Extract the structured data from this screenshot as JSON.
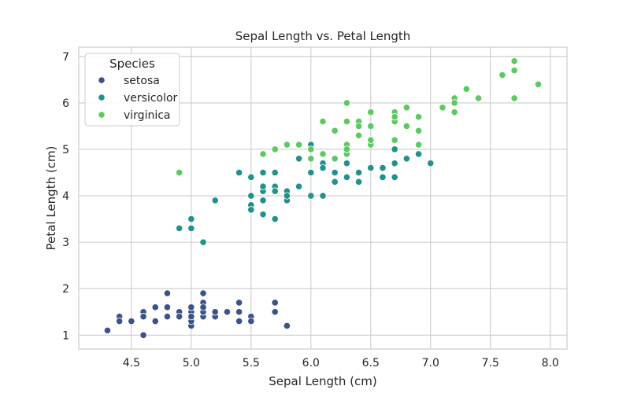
{
  "chart_data": {
    "type": "scatter",
    "title": "Sepal Length vs. Petal Length",
    "xlabel": "Sepal Length (cm)",
    "ylabel": "Petal Length (cm)",
    "xlim": [
      4.06,
      8.14
    ],
    "ylim": [
      0.7,
      7.2
    ],
    "x_ticks": [
      4.5,
      5.0,
      5.5,
      6.0,
      6.5,
      7.0,
      7.5,
      8.0
    ],
    "x_tick_labels": [
      "4.5",
      "5.0",
      "5.5",
      "6.0",
      "6.5",
      "7.0",
      "7.5",
      "8.0"
    ],
    "y_ticks": [
      1,
      2,
      3,
      4,
      5,
      6,
      7
    ],
    "y_tick_labels": [
      "1",
      "2",
      "3",
      "4",
      "5",
      "6",
      "7"
    ],
    "grid": true,
    "legend": {
      "title": "Species",
      "placement": "top-left"
    },
    "series": [
      {
        "name": "setosa",
        "color": "#3b528b",
        "points": [
          [
            5.1,
            1.4
          ],
          [
            4.9,
            1.4
          ],
          [
            4.7,
            1.3
          ],
          [
            4.6,
            1.5
          ],
          [
            5.0,
            1.4
          ],
          [
            5.4,
            1.7
          ],
          [
            4.6,
            1.4
          ],
          [
            5.0,
            1.5
          ],
          [
            4.4,
            1.4
          ],
          [
            4.9,
            1.5
          ],
          [
            5.4,
            1.5
          ],
          [
            4.8,
            1.6
          ],
          [
            4.8,
            1.4
          ],
          [
            4.3,
            1.1
          ],
          [
            5.8,
            1.2
          ],
          [
            5.7,
            1.5
          ],
          [
            5.4,
            1.3
          ],
          [
            5.1,
            1.4
          ],
          [
            5.7,
            1.7
          ],
          [
            5.1,
            1.5
          ],
          [
            5.4,
            1.7
          ],
          [
            5.1,
            1.5
          ],
          [
            4.6,
            1.0
          ],
          [
            5.1,
            1.7
          ],
          [
            4.8,
            1.9
          ],
          [
            5.0,
            1.6
          ],
          [
            5.0,
            1.6
          ],
          [
            5.2,
            1.5
          ],
          [
            5.2,
            1.4
          ],
          [
            4.7,
            1.6
          ],
          [
            4.8,
            1.6
          ],
          [
            5.4,
            1.5
          ],
          [
            5.2,
            1.5
          ],
          [
            5.5,
            1.4
          ],
          [
            4.9,
            1.5
          ],
          [
            5.0,
            1.2
          ],
          [
            5.5,
            1.3
          ],
          [
            4.9,
            1.4
          ],
          [
            4.4,
            1.3
          ],
          [
            5.1,
            1.5
          ],
          [
            5.0,
            1.3
          ],
          [
            4.5,
            1.3
          ],
          [
            4.4,
            1.3
          ],
          [
            5.0,
            1.6
          ],
          [
            5.1,
            1.9
          ],
          [
            4.8,
            1.4
          ],
          [
            5.1,
            1.6
          ],
          [
            4.6,
            1.4
          ],
          [
            5.3,
            1.5
          ],
          [
            5.0,
            1.4
          ]
        ]
      },
      {
        "name": "versicolor",
        "color": "#21918c",
        "points": [
          [
            7.0,
            4.7
          ],
          [
            6.4,
            4.5
          ],
          [
            6.9,
            4.9
          ],
          [
            5.5,
            4.0
          ],
          [
            6.5,
            4.6
          ],
          [
            5.7,
            4.5
          ],
          [
            6.3,
            4.7
          ],
          [
            4.9,
            3.3
          ],
          [
            6.6,
            4.6
          ],
          [
            5.2,
            3.9
          ],
          [
            5.0,
            3.5
          ],
          [
            5.9,
            4.2
          ],
          [
            6.0,
            4.0
          ],
          [
            6.1,
            4.7
          ],
          [
            5.6,
            3.6
          ],
          [
            6.7,
            4.4
          ],
          [
            5.6,
            4.5
          ],
          [
            5.8,
            4.1
          ],
          [
            6.2,
            4.5
          ],
          [
            5.6,
            3.9
          ],
          [
            5.9,
            4.8
          ],
          [
            6.1,
            4.0
          ],
          [
            6.3,
            4.9
          ],
          [
            6.1,
            4.7
          ],
          [
            6.4,
            4.3
          ],
          [
            6.6,
            4.4
          ],
          [
            6.8,
            4.8
          ],
          [
            6.7,
            5.0
          ],
          [
            6.0,
            4.5
          ],
          [
            5.7,
            3.5
          ],
          [
            5.5,
            3.8
          ],
          [
            5.5,
            3.7
          ],
          [
            5.8,
            3.9
          ],
          [
            6.0,
            5.1
          ],
          [
            5.4,
            4.5
          ],
          [
            6.0,
            4.5
          ],
          [
            6.7,
            4.7
          ],
          [
            6.3,
            4.4
          ],
          [
            5.6,
            4.1
          ],
          [
            5.5,
            4.0
          ],
          [
            5.5,
            4.4
          ],
          [
            6.1,
            4.6
          ],
          [
            5.8,
            4.0
          ],
          [
            5.0,
            3.3
          ],
          [
            5.6,
            4.2
          ],
          [
            5.7,
            4.2
          ],
          [
            5.7,
            4.2
          ],
          [
            6.2,
            4.3
          ],
          [
            5.1,
            3.0
          ],
          [
            5.7,
            4.1
          ]
        ]
      },
      {
        "name": "virginica",
        "color": "#5ec962",
        "points": [
          [
            6.3,
            6.0
          ],
          [
            5.8,
            5.1
          ],
          [
            7.1,
            5.9
          ],
          [
            6.3,
            5.6
          ],
          [
            6.5,
            5.8
          ],
          [
            7.6,
            6.6
          ],
          [
            4.9,
            4.5
          ],
          [
            7.3,
            6.3
          ],
          [
            6.7,
            5.8
          ],
          [
            7.2,
            6.1
          ],
          [
            6.5,
            5.1
          ],
          [
            6.4,
            5.3
          ],
          [
            6.8,
            5.5
          ],
          [
            5.7,
            5.0
          ],
          [
            5.8,
            5.1
          ],
          [
            6.4,
            5.3
          ],
          [
            6.5,
            5.5
          ],
          [
            7.7,
            6.7
          ],
          [
            7.7,
            6.9
          ],
          [
            6.0,
            5.0
          ],
          [
            6.9,
            5.7
          ],
          [
            5.6,
            4.9
          ],
          [
            7.7,
            6.7
          ],
          [
            6.3,
            4.9
          ],
          [
            6.7,
            5.7
          ],
          [
            7.2,
            6.0
          ],
          [
            6.2,
            4.8
          ],
          [
            6.1,
            4.9
          ],
          [
            6.4,
            5.6
          ],
          [
            7.2,
            5.8
          ],
          [
            7.4,
            6.1
          ],
          [
            7.9,
            6.4
          ],
          [
            6.4,
            5.6
          ],
          [
            6.3,
            5.1
          ],
          [
            6.1,
            5.6
          ],
          [
            7.7,
            6.1
          ],
          [
            6.3,
            5.6
          ],
          [
            6.4,
            5.5
          ],
          [
            6.0,
            4.8
          ],
          [
            6.9,
            5.4
          ],
          [
            6.7,
            5.6
          ],
          [
            6.9,
            5.1
          ],
          [
            5.8,
            5.1
          ],
          [
            6.8,
            5.9
          ],
          [
            6.7,
            5.7
          ],
          [
            6.7,
            5.2
          ],
          [
            6.3,
            5.0
          ],
          [
            6.5,
            5.2
          ],
          [
            6.2,
            5.4
          ],
          [
            5.9,
            5.1
          ]
        ]
      }
    ]
  }
}
